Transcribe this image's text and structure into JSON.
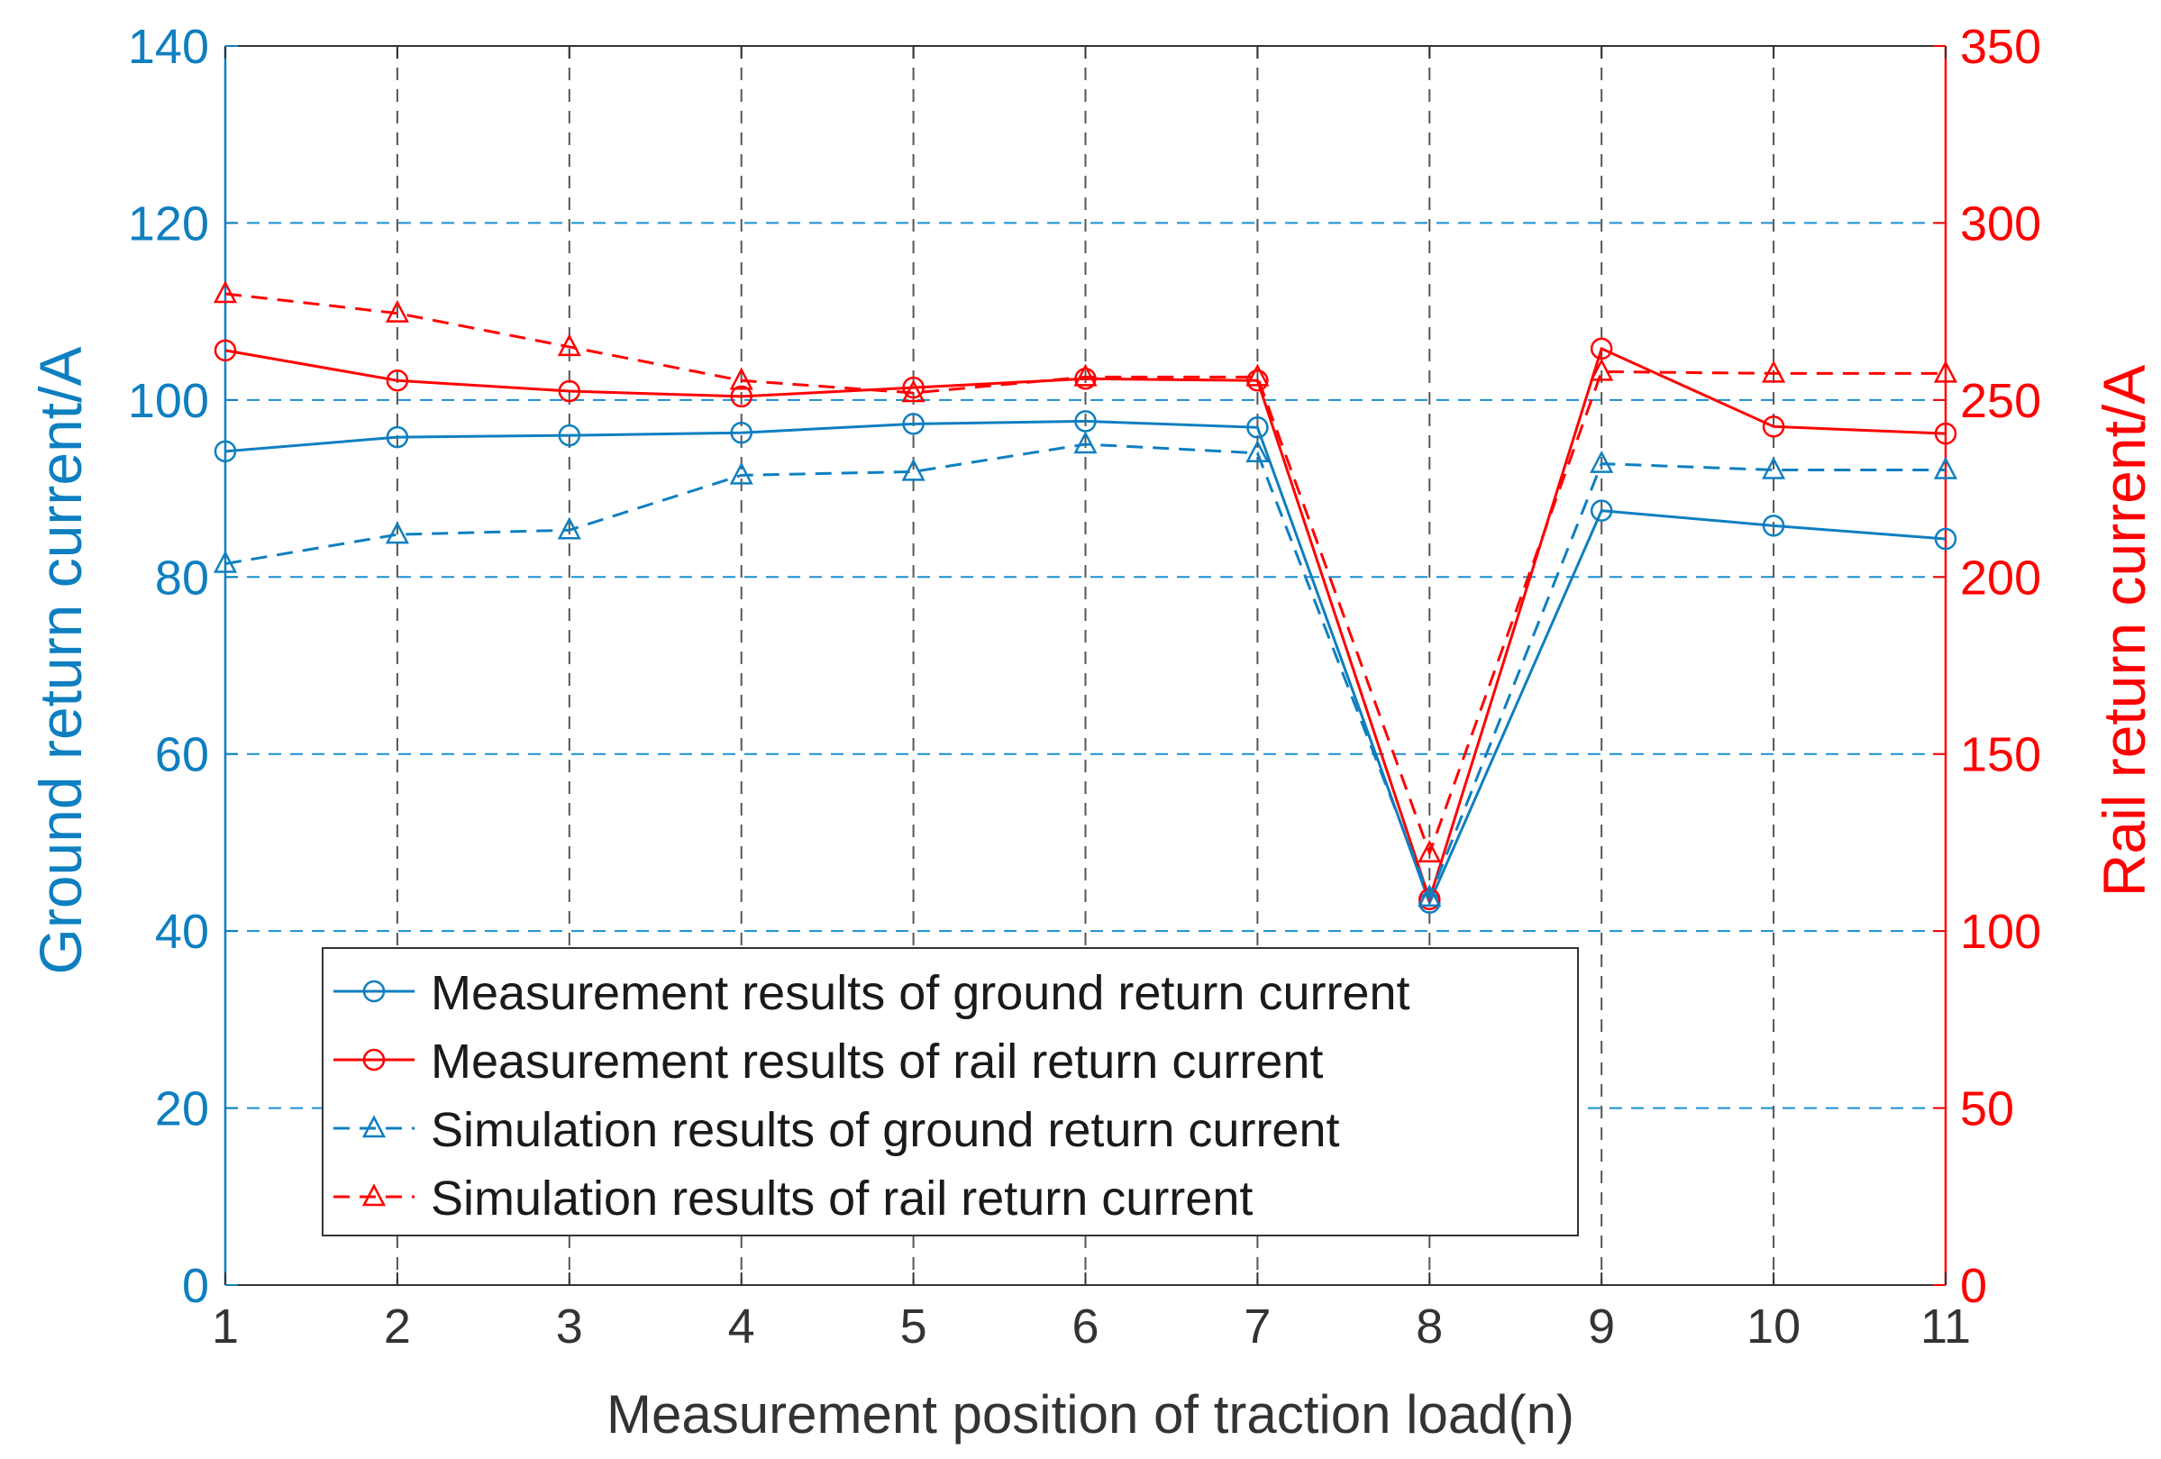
{
  "chart_data": {
    "type": "line",
    "title": "",
    "xlabel": "Measurement position of traction load(n)",
    "ylabel_left": "Ground return current/A",
    "ylabel_right": "Rail return current/A",
    "x": [
      1,
      2,
      3,
      4,
      5,
      6,
      7,
      8,
      9,
      10,
      11
    ],
    "xticks": [
      "1",
      "2",
      "3",
      "4",
      "5",
      "6",
      "7",
      "8",
      "9",
      "10",
      "11"
    ],
    "xlim": [
      1,
      11
    ],
    "ylim_left": [
      0,
      140
    ],
    "yticks_left": [
      0,
      20,
      40,
      60,
      80,
      100,
      120,
      140
    ],
    "ylim_right": [
      0,
      350
    ],
    "yticks_right": [
      0,
      50,
      100,
      150,
      200,
      250,
      300,
      350
    ],
    "grid": true,
    "legend_position": "bottom-left",
    "colors": {
      "left_axis": "#0e7fc0",
      "right_axis": "#ff0000",
      "grid_h": "#1a8fd1",
      "grid_v": "#555555",
      "frame": "#333333"
    },
    "series": [
      {
        "name": "Measurement results of ground return current",
        "axis": "left",
        "style": "solid",
        "marker": "circle",
        "color": "#0e7fc0",
        "values": [
          94.2,
          95.8,
          96.0,
          96.3,
          97.3,
          97.6,
          96.9,
          43.2,
          87.5,
          85.8,
          84.3
        ]
      },
      {
        "name": "Measurement results of rail return current",
        "axis": "right",
        "style": "solid",
        "marker": "circle",
        "color": "#ff0000",
        "values": [
          264.0,
          255.5,
          252.5,
          251.0,
          253.5,
          256.0,
          255.5,
          109.0,
          264.5,
          242.5,
          240.5
        ]
      },
      {
        "name": "Simulation results of ground return current",
        "axis": "left",
        "style": "dashed",
        "marker": "triangle",
        "color": "#0e7fc0",
        "values": [
          81.5,
          84.8,
          85.3,
          91.5,
          91.9,
          95.0,
          94.0,
          43.8,
          92.8,
          92.1,
          92.1
        ]
      },
      {
        "name": "Simulation results of rail return current",
        "axis": "right",
        "style": "dashed",
        "marker": "triangle",
        "color": "#ff0000",
        "values": [
          280.0,
          274.5,
          265.0,
          255.5,
          252.0,
          256.5,
          256.5,
          122.0,
          258.0,
          257.5,
          257.5
        ]
      }
    ]
  }
}
